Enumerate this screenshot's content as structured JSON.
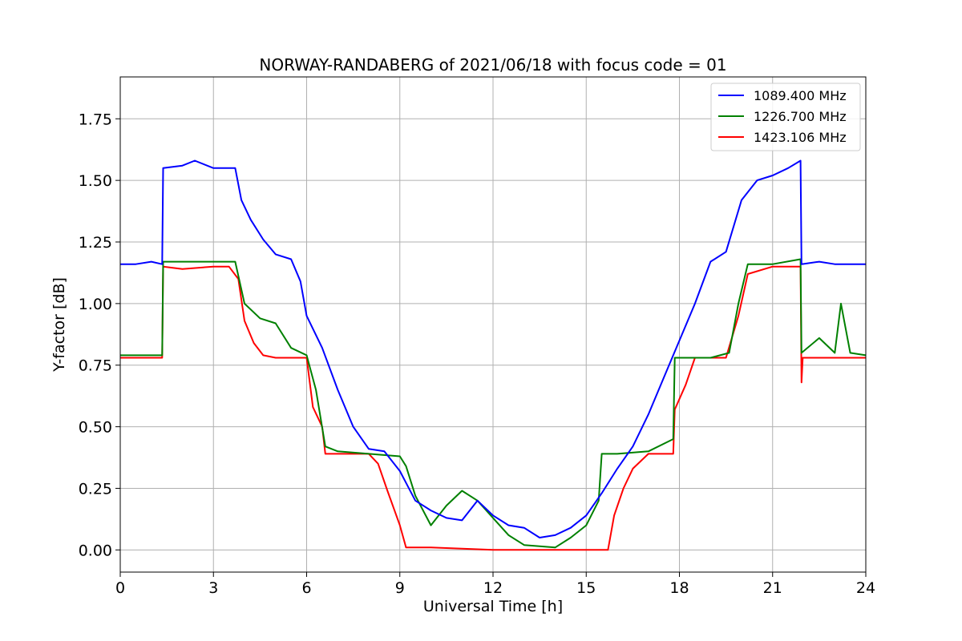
{
  "chart_data": {
    "type": "line",
    "title": "NORWAY-RANDABERG of 2021/06/18 with focus code = 01",
    "xlabel": "Universal Time [h]",
    "ylabel": "Y-factor [dB]",
    "xlim": [
      0,
      24
    ],
    "ylim": [
      -0.09,
      1.92
    ],
    "xticks": [
      0,
      3,
      6,
      9,
      12,
      15,
      18,
      21,
      24
    ],
    "yticks": [
      0.0,
      0.25,
      0.5,
      0.75,
      1.0,
      1.25,
      1.5,
      1.75
    ],
    "ytick_labels": [
      "0.00",
      "0.25",
      "0.50",
      "0.75",
      "1.00",
      "1.25",
      "1.50",
      "1.75"
    ],
    "grid": true,
    "legend_position": "top-right",
    "series": [
      {
        "name": "1089.400 MHz",
        "color": "#0000ff",
        "x": [
          0,
          0.5,
          1.0,
          1.35,
          1.38,
          2.0,
          2.4,
          3.0,
          3.7,
          3.9,
          4.2,
          4.6,
          5.0,
          5.5,
          5.8,
          6.0,
          6.5,
          7.0,
          7.5,
          8.0,
          8.5,
          9.0,
          9.5,
          10.0,
          10.5,
          11.0,
          11.5,
          12.0,
          12.5,
          13.0,
          13.5,
          14.0,
          14.5,
          15.0,
          15.5,
          16.0,
          16.5,
          17.0,
          17.5,
          18.0,
          18.5,
          19.0,
          19.5,
          20.0,
          20.5,
          21.0,
          21.5,
          21.9,
          21.93,
          22.5,
          23.0,
          24.0
        ],
        "values": [
          1.16,
          1.16,
          1.17,
          1.16,
          1.55,
          1.56,
          1.58,
          1.55,
          1.55,
          1.42,
          1.34,
          1.26,
          1.2,
          1.18,
          1.09,
          0.95,
          0.82,
          0.65,
          0.5,
          0.41,
          0.4,
          0.32,
          0.2,
          0.16,
          0.13,
          0.12,
          0.2,
          0.14,
          0.1,
          0.09,
          0.05,
          0.06,
          0.09,
          0.14,
          0.23,
          0.33,
          0.42,
          0.55,
          0.7,
          0.85,
          1.0,
          1.17,
          1.21,
          1.42,
          1.5,
          1.52,
          1.55,
          1.58,
          1.16,
          1.17,
          1.16,
          1.16
        ]
      },
      {
        "name": "1226.700 MHz",
        "color": "#008000",
        "x": [
          0,
          1.0,
          1.35,
          1.38,
          2.0,
          3.0,
          3.7,
          4.0,
          4.5,
          5.0,
          5.5,
          6.0,
          6.3,
          6.6,
          7.0,
          8.0,
          9.0,
          9.2,
          9.5,
          10.0,
          10.5,
          11.0,
          11.5,
          12.0,
          12.5,
          13.0,
          14.0,
          14.5,
          15.0,
          15.4,
          15.5,
          16.0,
          17.0,
          17.8,
          17.85,
          18.5,
          19.0,
          19.6,
          19.9,
          20.2,
          21.0,
          21.9,
          21.93,
          22.5,
          23.0,
          23.2,
          23.5,
          24.0
        ],
        "values": [
          0.79,
          0.79,
          0.79,
          1.17,
          1.17,
          1.17,
          1.17,
          1.0,
          0.94,
          0.92,
          0.82,
          0.79,
          0.65,
          0.42,
          0.4,
          0.39,
          0.38,
          0.34,
          0.22,
          0.1,
          0.18,
          0.24,
          0.2,
          0.13,
          0.06,
          0.02,
          0.01,
          0.05,
          0.1,
          0.2,
          0.39,
          0.39,
          0.4,
          0.45,
          0.78,
          0.78,
          0.78,
          0.8,
          1.0,
          1.16,
          1.16,
          1.18,
          0.8,
          0.86,
          0.8,
          1.0,
          0.8,
          0.79
        ]
      },
      {
        "name": "1423.106 MHz",
        "color": "#ff0000",
        "x": [
          0,
          1.0,
          1.35,
          1.38,
          2.0,
          3.0,
          3.5,
          3.8,
          4.0,
          4.3,
          4.6,
          5.0,
          5.5,
          6.0,
          6.2,
          6.5,
          6.6,
          7.0,
          8.0,
          8.3,
          8.6,
          9.0,
          9.2,
          10.0,
          11.0,
          12.0,
          13.0,
          14.0,
          15.0,
          15.7,
          15.9,
          16.2,
          16.5,
          17.0,
          17.8,
          17.85,
          18.2,
          18.5,
          19.0,
          19.5,
          19.9,
          20.2,
          21.0,
          21.9,
          21.93,
          21.97,
          22.5,
          23.0,
          24.0
        ],
        "values": [
          0.78,
          0.78,
          0.78,
          1.15,
          1.14,
          1.15,
          1.15,
          1.1,
          0.93,
          0.84,
          0.79,
          0.78,
          0.78,
          0.78,
          0.58,
          0.5,
          0.39,
          0.39,
          0.39,
          0.35,
          0.24,
          0.1,
          0.01,
          0.01,
          0.005,
          0.0,
          0.0,
          0.0,
          0.0,
          0.0,
          0.14,
          0.25,
          0.33,
          0.39,
          0.39,
          0.57,
          0.67,
          0.78,
          0.78,
          0.78,
          0.95,
          1.12,
          1.15,
          1.15,
          0.68,
          0.78,
          0.78,
          0.78,
          0.78
        ]
      }
    ]
  }
}
